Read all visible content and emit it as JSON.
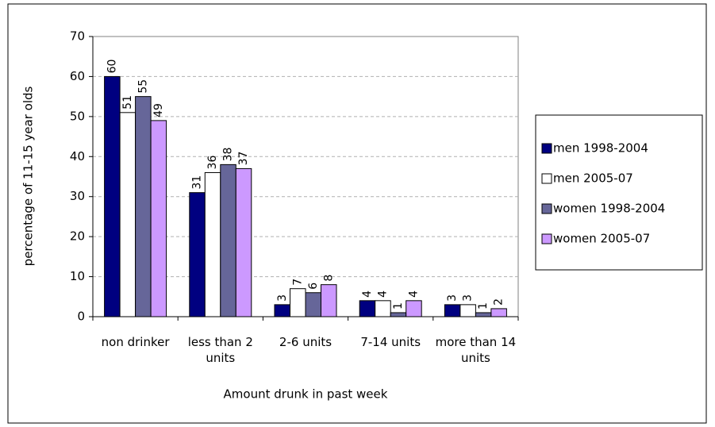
{
  "chart_data": {
    "type": "bar",
    "x_label": "Amount drunk in past week",
    "y_label": "percentage of 11-15 year olds",
    "categories": [
      "non drinker",
      "less than 2 units",
      "2-6 units",
      "7-14 units",
      "more than 14 units"
    ],
    "series": [
      {
        "name": "men 1998-2004",
        "color": "#000080",
        "values": [
          60,
          31,
          3,
          4,
          3
        ]
      },
      {
        "name": "men 2005-07",
        "color": "#ffffff",
        "values": [
          51,
          36,
          7,
          4,
          3
        ]
      },
      {
        "name": "women 1998-2004",
        "color": "#666699",
        "values": [
          55,
          38,
          6,
          1,
          1
        ]
      },
      {
        "name": "women 2005-07",
        "color": "#cc99ff",
        "values": [
          49,
          37,
          8,
          4,
          2
        ]
      }
    ],
    "ylim": [
      0,
      70
    ],
    "yticks": [
      0,
      10,
      20,
      30,
      40,
      50,
      60,
      70
    ],
    "grid": true,
    "legend": "right"
  }
}
